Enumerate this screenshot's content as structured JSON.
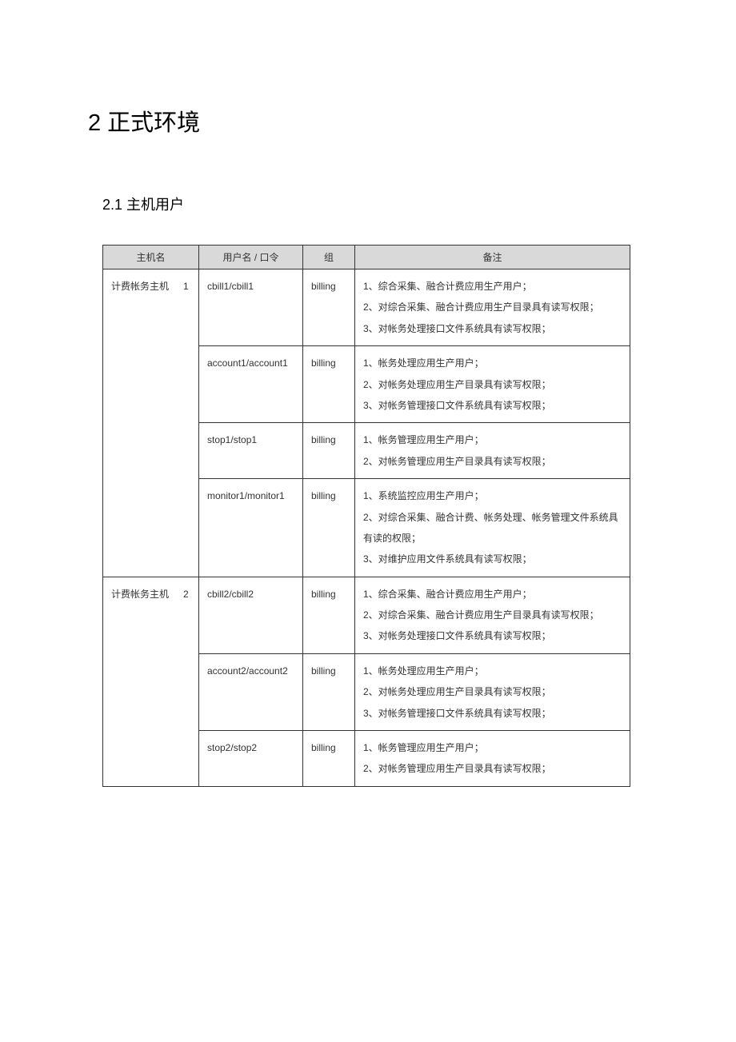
{
  "heading": {
    "section": "2 正式环境",
    "subsection": "2.1 主机用户"
  },
  "table": {
    "columns": {
      "host": "主机名",
      "user": "用户名 / 口令",
      "group": "组",
      "remark": "备注"
    },
    "hosts": [
      {
        "name_prefix": "计费帐务主机",
        "name_num": "1",
        "rows": [
          {
            "user": "cbill1/cbill1",
            "group": "billing",
            "remark": "1、综合采集、融合计费应用生产用户；\n2、对综合采集、融合计费应用生产目录具有读写权限；\n3、对帐务处理接口文件系统具有读写权限；"
          },
          {
            "user": "account1/account1",
            "group": "billing",
            "remark": "1、帐务处理应用生产用户；\n2、对帐务处理应用生产目录具有读写权限；\n3、对帐务管理接口文件系统具有读写权限；"
          },
          {
            "user": "stop1/stop1",
            "group": "billing",
            "remark": "1、帐务管理应用生产用户；\n2、对帐务管理应用生产目录具有读写权限；"
          },
          {
            "user": "monitor1/monitor1",
            "group": "billing",
            "remark": "1、系统监控应用生产用户；\n2、对综合采集、融合计费、帐务处理、帐务管理文件系统具有读的权限；\n3、对维护应用文件系统具有读写权限；"
          }
        ]
      },
      {
        "name_prefix": "计费帐务主机",
        "name_num": "2",
        "rows": [
          {
            "user": "cbill2/cbill2",
            "group": "billing",
            "remark": "1、综合采集、融合计费应用生产用户；\n2、对综合采集、融合计费应用生产目录具有读写权限；\n3、对帐务处理接口文件系统具有读写权限；"
          },
          {
            "user": "account2/account2",
            "group": "billing",
            "remark": "1、帐务处理应用生产用户；\n2、对帐务处理应用生产目录具有读写权限；\n3、对帐务管理接口文件系统具有读写权限；"
          },
          {
            "user": "stop2/stop2",
            "group": "billing",
            "remark": "1、帐务管理应用生产用户；\n2、对帐务管理应用生产目录具有读写权限；"
          }
        ]
      }
    ]
  }
}
